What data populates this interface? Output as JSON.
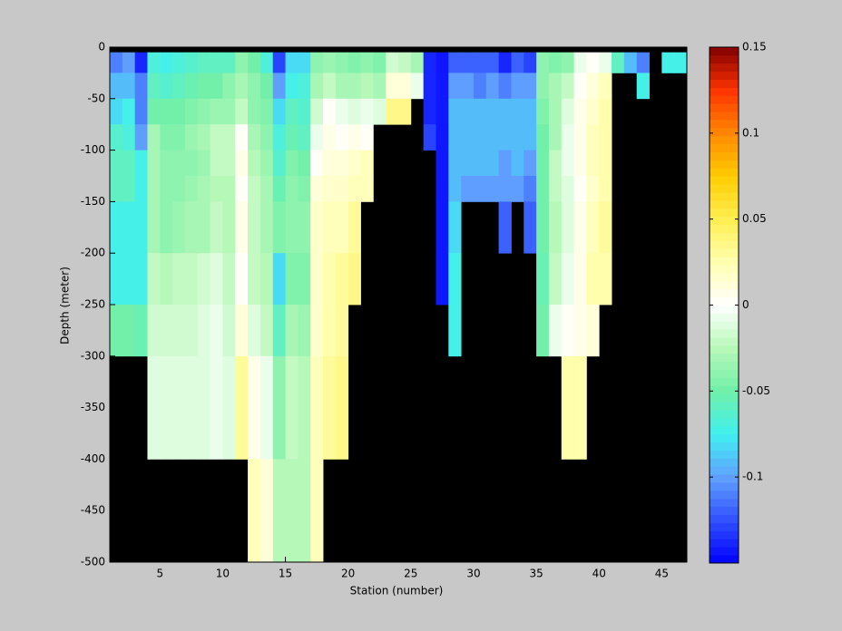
{
  "chart_data": {
    "type": "heatmap",
    "xlabel": "Station (number)",
    "ylabel": "Depth (meter)",
    "x": [
      1,
      2,
      3,
      4,
      5,
      6,
      7,
      8,
      9,
      10,
      11,
      12,
      13,
      14,
      15,
      16,
      17,
      18,
      19,
      20,
      21,
      22,
      23,
      24,
      25,
      26,
      27,
      28,
      29,
      30,
      31,
      32,
      33,
      34,
      35,
      36,
      37,
      38,
      39,
      40,
      41,
      42,
      43,
      44,
      45,
      46,
      47
    ],
    "y": [
      -5,
      -25,
      -50,
      -75,
      -100,
      -125,
      -150,
      -200,
      -250,
      -300,
      -400,
      -500
    ],
    "values": [
      [
        -0.11,
        -0.09,
        -0.08,
        -0.065,
        -0.06,
        -0.06,
        -0.075,
        -0.075,
        -0.05,
        null,
        null
      ],
      [
        -0.1,
        -0.09,
        -0.075,
        -0.07,
        -0.06,
        -0.06,
        -0.075,
        -0.075,
        -0.05,
        null,
        null
      ],
      [
        -0.14,
        -0.11,
        -0.11,
        -0.1,
        -0.075,
        -0.075,
        -0.075,
        -0.075,
        -0.055,
        null,
        null
      ],
      [
        -0.07,
        -0.06,
        -0.05,
        -0.03,
        -0.03,
        -0.03,
        -0.03,
        -0.02,
        -0.015,
        -0.01,
        null
      ],
      [
        -0.075,
        -0.065,
        -0.05,
        -0.045,
        -0.04,
        -0.04,
        -0.04,
        -0.025,
        -0.015,
        -0.01,
        null
      ],
      [
        -0.07,
        -0.06,
        -0.05,
        -0.045,
        -0.04,
        -0.04,
        -0.035,
        -0.02,
        -0.015,
        -0.01,
        null
      ],
      [
        -0.065,
        -0.055,
        -0.045,
        -0.035,
        -0.04,
        -0.035,
        -0.03,
        -0.02,
        -0.015,
        -0.01,
        null
      ],
      [
        -0.06,
        -0.05,
        -0.04,
        -0.03,
        -0.035,
        -0.03,
        -0.03,
        -0.015,
        -0.01,
        -0.01,
        null
      ],
      [
        -0.06,
        -0.05,
        -0.035,
        -0.02,
        -0.02,
        -0.025,
        -0.02,
        -0.01,
        -0.005,
        -0.005,
        null
      ],
      [
        -0.06,
        -0.04,
        -0.035,
        -0.02,
        -0.02,
        -0.025,
        -0.025,
        -0.02,
        -0.015,
        -0.01,
        null
      ],
      [
        -0.04,
        -0.03,
        -0.02,
        0,
        0.005,
        0,
        0.005,
        0,
        0.01,
        0.03,
        null
      ],
      [
        -0.05,
        -0.04,
        -0.04,
        -0.03,
        -0.025,
        -0.02,
        -0.02,
        -0.02,
        -0.01,
        0.005,
        0.02
      ],
      [
        -0.07,
        -0.05,
        -0.045,
        -0.04,
        -0.035,
        -0.03,
        -0.03,
        -0.025,
        -0.02,
        -0.005,
        0.01
      ],
      [
        -0.13,
        -0.1,
        -0.08,
        -0.07,
        -0.065,
        -0.055,
        -0.045,
        -0.08,
        -0.06,
        -0.04,
        -0.025
      ],
      [
        -0.08,
        -0.075,
        -0.06,
        -0.055,
        -0.045,
        -0.04,
        -0.04,
        -0.045,
        -0.03,
        -0.02,
        -0.025
      ],
      [
        -0.08,
        -0.07,
        -0.065,
        -0.06,
        -0.05,
        -0.045,
        -0.04,
        -0.045,
        -0.035,
        -0.025,
        -0.025
      ],
      [
        -0.04,
        -0.03,
        -0.015,
        -0.005,
        0,
        0.01,
        0.015,
        0.015,
        0.015,
        0.02,
        0.02
      ],
      [
        -0.035,
        -0.02,
        0,
        0.005,
        0.01,
        0.015,
        0.02,
        0.025,
        0.025,
        0.03,
        null
      ],
      [
        -0.04,
        -0.03,
        -0.005,
        0,
        0.01,
        0.015,
        0.02,
        0.03,
        0.03,
        0.035,
        null
      ],
      [
        -0.045,
        -0.03,
        -0.01,
        0.005,
        0.015,
        0.02,
        0.03,
        0.035,
        null,
        null,
        null
      ],
      [
        -0.04,
        -0.025,
        -0.005,
        0,
        0.02,
        0.02,
        null,
        null,
        null,
        null,
        null
      ],
      [
        -0.045,
        -0.03,
        -0.01,
        null,
        null,
        null,
        null,
        null,
        null,
        null,
        null
      ],
      [
        -0.015,
        0.01,
        0.035,
        null,
        null,
        null,
        null,
        null,
        null,
        null,
        null
      ],
      [
        -0.02,
        0.01,
        0.035,
        null,
        null,
        null,
        null,
        null,
        null,
        null,
        null
      ],
      [
        -0.03,
        -0.005,
        null,
        null,
        null,
        null,
        null,
        null,
        null,
        null,
        null
      ],
      [
        -0.14,
        -0.14,
        -0.14,
        -0.13,
        null,
        null,
        null,
        null,
        null,
        null,
        null
      ],
      [
        -0.145,
        -0.145,
        -0.145,
        -0.145,
        -0.145,
        -0.145,
        -0.145,
        -0.145,
        null,
        null,
        null
      ],
      [
        -0.12,
        -0.1,
        -0.09,
        -0.09,
        -0.09,
        -0.09,
        -0.08,
        -0.075,
        -0.075,
        null,
        null
      ],
      [
        -0.12,
        -0.1,
        -0.09,
        -0.09,
        -0.09,
        -0.1,
        null,
        null,
        null,
        null,
        null
      ],
      [
        -0.12,
        -0.11,
        -0.09,
        -0.09,
        -0.09,
        -0.1,
        null,
        null,
        null,
        null,
        null
      ],
      [
        -0.12,
        -0.1,
        -0.09,
        -0.09,
        -0.09,
        -0.1,
        null,
        null,
        null,
        null,
        null
      ],
      [
        -0.14,
        -0.11,
        -0.09,
        -0.09,
        -0.1,
        -0.1,
        -0.12,
        null,
        null,
        null,
        null
      ],
      [
        -0.12,
        -0.1,
        -0.09,
        -0.09,
        -0.09,
        -0.1,
        null,
        null,
        null,
        null,
        null
      ],
      [
        -0.13,
        -0.1,
        -0.09,
        -0.09,
        -0.1,
        -0.11,
        -0.12,
        null,
        null,
        null,
        null
      ],
      [
        -0.04,
        -0.04,
        -0.045,
        -0.05,
        -0.05,
        -0.05,
        -0.05,
        -0.055,
        -0.05,
        null,
        null
      ],
      [
        -0.045,
        -0.03,
        -0.03,
        -0.03,
        -0.02,
        -0.02,
        -0.025,
        -0.02,
        -0.005,
        null,
        null
      ],
      [
        -0.04,
        -0.02,
        -0.01,
        -0.005,
        -0.005,
        -0.01,
        -0.01,
        -0.005,
        0,
        0.025,
        null
      ],
      [
        -0.005,
        0,
        0.005,
        0.005,
        0.005,
        0,
        0.005,
        0.005,
        0.005,
        0.025,
        null
      ],
      [
        0,
        0.01,
        0.015,
        0.02,
        0.02,
        0.015,
        0.02,
        0.025,
        0.01,
        null,
        null
      ],
      [
        -0.005,
        0.02,
        0.025,
        0.025,
        0.025,
        0.025,
        0.03,
        0.025,
        null,
        null,
        null
      ],
      [
        -0.06,
        null,
        null,
        null,
        null,
        null,
        null,
        null,
        null,
        null,
        null
      ],
      [
        -0.09,
        null,
        null,
        null,
        null,
        null,
        null,
        null,
        null,
        null,
        null
      ],
      [
        -0.11,
        -0.075,
        null,
        null,
        null,
        null,
        null,
        null,
        null,
        null,
        null
      ],
      [
        null,
        null,
        null,
        null,
        null,
        null,
        null,
        null,
        null,
        null,
        null
      ],
      [
        -0.075,
        null,
        null,
        null,
        null,
        null,
        null,
        null,
        null,
        null,
        null
      ],
      [
        -0.075,
        null,
        null,
        null,
        null,
        null,
        null,
        null,
        null,
        null,
        null
      ]
    ],
    "xlim": [
      1,
      47
    ],
    "ylim": [
      -500,
      0
    ],
    "xticks": [
      5,
      10,
      15,
      20,
      25,
      30,
      35,
      40,
      45
    ],
    "yticks": [
      0,
      -50,
      -100,
      -150,
      -200,
      -250,
      -300,
      -350,
      -400,
      -450,
      -500
    ],
    "clim": [
      -0.15,
      0.15
    ],
    "colorbar_ticks": [
      0.15,
      0.1,
      0.05,
      0,
      -0.05,
      -0.1
    ],
    "colormap": [
      "#0000ff",
      "#3050ff",
      "#60a0ff",
      "#40f0f0",
      "#70f0a8",
      "#b8f8b8",
      "#ffffff",
      "#ffffb0",
      "#ffee50",
      "#ffcc00",
      "#ff8800",
      "#ff3300",
      "#800000"
    ],
    "missing_color": "#000000"
  }
}
